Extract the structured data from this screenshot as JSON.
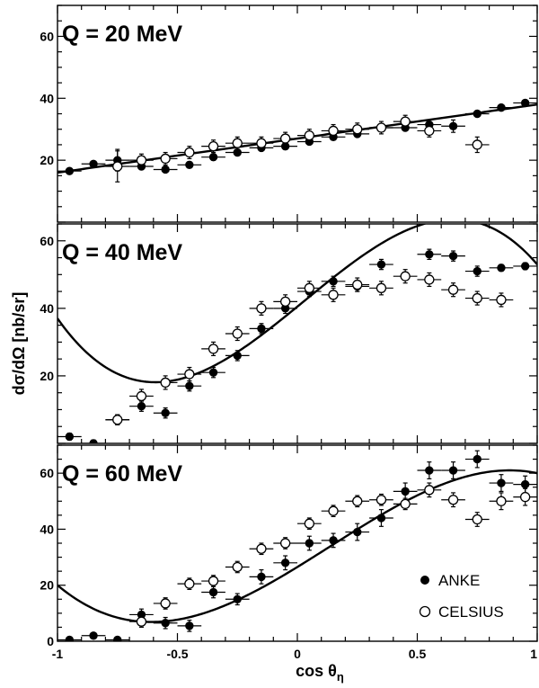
{
  "figure": {
    "y_axis_title": "dσ/dΩ [nb/sr]",
    "x_axis_title": "cos θ",
    "x_axis_title_subscript": "η"
  },
  "legend": {
    "anke_label": "ANKE",
    "celsius_label": "CELSIUS"
  },
  "chart_data": [
    {
      "type": "scatter",
      "title": "Q = 20 MeV",
      "xlabel": "cos θη",
      "ylabel": "dσ/dΩ [nb/sr]",
      "xlim": [
        -1,
        1
      ],
      "ylim": [
        0,
        70
      ],
      "x_ticks": [],
      "y_ticks": [
        "20",
        "40",
        "60"
      ],
      "fit": {
        "a": 27.0,
        "b": 11.0,
        "c": 0.0,
        "d": 0.0
      },
      "series": [
        {
          "name": "ANKE",
          "marker": "filled",
          "points": [
            {
              "x": -0.95,
              "y": 16.5,
              "xerr": 0.05,
              "yerr": 0.8
            },
            {
              "x": -0.85,
              "y": 18.8,
              "xerr": 0.05,
              "yerr": 0.8
            },
            {
              "x": -0.75,
              "y": 20.0,
              "xerr": 0.05,
              "yerr": 3.5
            },
            {
              "x": -0.65,
              "y": 18.0,
              "xerr": 0.05,
              "yerr": 1.0
            },
            {
              "x": -0.55,
              "y": 17.0,
              "xerr": 0.05,
              "yerr": 1.0
            },
            {
              "x": -0.45,
              "y": 18.5,
              "xerr": 0.05,
              "yerr": 1.0
            },
            {
              "x": -0.35,
              "y": 21.0,
              "xerr": 0.05,
              "yerr": 1.0
            },
            {
              "x": -0.25,
              "y": 22.5,
              "xerr": 0.05,
              "yerr": 1.0
            },
            {
              "x": -0.15,
              "y": 24.0,
              "xerr": 0.05,
              "yerr": 1.0
            },
            {
              "x": -0.05,
              "y": 24.5,
              "xerr": 0.05,
              "yerr": 1.0
            },
            {
              "x": 0.05,
              "y": 26.0,
              "xerr": 0.05,
              "yerr": 1.0
            },
            {
              "x": 0.15,
              "y": 27.5,
              "xerr": 0.05,
              "yerr": 1.0
            },
            {
              "x": 0.25,
              "y": 28.5,
              "xerr": 0.05,
              "yerr": 1.0
            },
            {
              "x": 0.35,
              "y": 30.5,
              "xerr": 0.05,
              "yerr": 1.0
            },
            {
              "x": 0.45,
              "y": 30.5,
              "xerr": 0.05,
              "yerr": 1.0
            },
            {
              "x": 0.55,
              "y": 31.5,
              "xerr": 0.05,
              "yerr": 1.0
            },
            {
              "x": 0.65,
              "y": 31.0,
              "xerr": 0.05,
              "yerr": 2.0
            },
            {
              "x": 0.75,
              "y": 35.0,
              "xerr": 0.05,
              "yerr": 0.8
            },
            {
              "x": 0.85,
              "y": 37.0,
              "xerr": 0.05,
              "yerr": 0.8
            },
            {
              "x": 0.95,
              "y": 38.5,
              "xerr": 0.05,
              "yerr": 0.8
            }
          ]
        },
        {
          "name": "CELSIUS",
          "marker": "open",
          "points": [
            {
              "x": -0.75,
              "y": 18.0,
              "xerr": 0.05,
              "yerr": 5.0
            },
            {
              "x": -0.65,
              "y": 20.0,
              "xerr": 0.05,
              "yerr": 2.0
            },
            {
              "x": -0.55,
              "y": 20.5,
              "xerr": 0.05,
              "yerr": 2.0
            },
            {
              "x": -0.45,
              "y": 22.5,
              "xerr": 0.05,
              "yerr": 2.0
            },
            {
              "x": -0.35,
              "y": 24.5,
              "xerr": 0.05,
              "yerr": 2.0
            },
            {
              "x": -0.25,
              "y": 25.5,
              "xerr": 0.05,
              "yerr": 2.0
            },
            {
              "x": -0.15,
              "y": 25.5,
              "xerr": 0.05,
              "yerr": 2.0
            },
            {
              "x": -0.05,
              "y": 27.0,
              "xerr": 0.05,
              "yerr": 2.0
            },
            {
              "x": 0.05,
              "y": 28.0,
              "xerr": 0.05,
              "yerr": 2.0
            },
            {
              "x": 0.15,
              "y": 29.5,
              "xerr": 0.05,
              "yerr": 2.0
            },
            {
              "x": 0.25,
              "y": 30.0,
              "xerr": 0.05,
              "yerr": 2.0
            },
            {
              "x": 0.35,
              "y": 30.5,
              "xerr": 0.05,
              "yerr": 2.0
            },
            {
              "x": 0.45,
              "y": 32.5,
              "xerr": 0.05,
              "yerr": 2.0
            },
            {
              "x": 0.55,
              "y": 29.5,
              "xerr": 0.05,
              "yerr": 2.0
            },
            {
              "x": 0.75,
              "y": 25.0,
              "xerr": 0.05,
              "yerr": 2.5
            }
          ]
        }
      ]
    },
    {
      "type": "scatter",
      "title": "Q = 40 MeV",
      "xlabel": "cos θη",
      "ylabel": "dσ/dΩ [nb/sr]",
      "xlim": [
        -1,
        1
      ],
      "ylim": [
        0,
        65
      ],
      "x_ticks": [],
      "y_ticks": [
        "20",
        "40",
        "60"
      ],
      "fit": {
        "a": 42.0,
        "b": 28.0,
        "c": 3.0,
        "d": -20.0
      },
      "series": [
        {
          "name": "ANKE",
          "marker": "filled",
          "points": [
            {
              "x": -0.95,
              "y": 2.0,
              "xerr": 0.05,
              "yerr": 1.0
            },
            {
              "x": -0.85,
              "y": 0.0,
              "xerr": 0.05,
              "yerr": 1.0
            },
            {
              "x": -0.75,
              "y": 7.0,
              "xerr": 0.05,
              "yerr": 1.5
            },
            {
              "x": -0.65,
              "y": 11.0,
              "xerr": 0.05,
              "yerr": 1.5
            },
            {
              "x": -0.55,
              "y": 9.0,
              "xerr": 0.05,
              "yerr": 1.5
            },
            {
              "x": -0.45,
              "y": 17.0,
              "xerr": 0.05,
              "yerr": 1.5
            },
            {
              "x": -0.35,
              "y": 21.0,
              "xerr": 0.05,
              "yerr": 1.5
            },
            {
              "x": -0.25,
              "y": 26.0,
              "xerr": 0.05,
              "yerr": 1.5
            },
            {
              "x": -0.15,
              "y": 34.0,
              "xerr": 0.05,
              "yerr": 1.5
            },
            {
              "x": -0.05,
              "y": 40.0,
              "xerr": 0.05,
              "yerr": 1.5
            },
            {
              "x": 0.05,
              "y": 45.0,
              "xerr": 0.05,
              "yerr": 1.5
            },
            {
              "x": 0.15,
              "y": 48.0,
              "xerr": 0.05,
              "yerr": 1.5
            },
            {
              "x": 0.25,
              "y": 46.5,
              "xerr": 0.05,
              "yerr": 1.5
            },
            {
              "x": 0.35,
              "y": 53.0,
              "xerr": 0.05,
              "yerr": 1.5
            },
            {
              "x": 0.55,
              "y": 56.0,
              "xerr": 0.05,
              "yerr": 1.5
            },
            {
              "x": 0.65,
              "y": 55.5,
              "xerr": 0.05,
              "yerr": 1.5
            },
            {
              "x": 0.75,
              "y": 51.0,
              "xerr": 0.05,
              "yerr": 1.5
            },
            {
              "x": 0.85,
              "y": 52.0,
              "xerr": 0.05,
              "yerr": 1.0
            },
            {
              "x": 0.95,
              "y": 52.5,
              "xerr": 0.05,
              "yerr": 1.0
            }
          ]
        },
        {
          "name": "CELSIUS",
          "marker": "open",
          "points": [
            {
              "x": -0.75,
              "y": 7.0,
              "xerr": 0.05,
              "yerr": 1.5
            },
            {
              "x": -0.65,
              "y": 14.0,
              "xerr": 0.05,
              "yerr": 2.0
            },
            {
              "x": -0.55,
              "y": 18.0,
              "xerr": 0.05,
              "yerr": 2.0
            },
            {
              "x": -0.45,
              "y": 20.5,
              "xerr": 0.05,
              "yerr": 2.0
            },
            {
              "x": -0.35,
              "y": 28.0,
              "xerr": 0.05,
              "yerr": 2.0
            },
            {
              "x": -0.25,
              "y": 32.5,
              "xerr": 0.05,
              "yerr": 2.0
            },
            {
              "x": -0.15,
              "y": 40.0,
              "xerr": 0.05,
              "yerr": 2.0
            },
            {
              "x": -0.05,
              "y": 42.0,
              "xerr": 0.05,
              "yerr": 2.0
            },
            {
              "x": 0.05,
              "y": 46.0,
              "xerr": 0.05,
              "yerr": 2.0
            },
            {
              "x": 0.15,
              "y": 44.0,
              "xerr": 0.05,
              "yerr": 2.0
            },
            {
              "x": 0.25,
              "y": 47.0,
              "xerr": 0.05,
              "yerr": 2.0
            },
            {
              "x": 0.35,
              "y": 46.0,
              "xerr": 0.05,
              "yerr": 2.0
            },
            {
              "x": 0.45,
              "y": 49.5,
              "xerr": 0.05,
              "yerr": 2.0
            },
            {
              "x": 0.55,
              "y": 48.5,
              "xerr": 0.05,
              "yerr": 2.0
            },
            {
              "x": 0.65,
              "y": 45.5,
              "xerr": 0.05,
              "yerr": 2.0
            },
            {
              "x": 0.75,
              "y": 43.0,
              "xerr": 0.05,
              "yerr": 2.0
            },
            {
              "x": 0.85,
              "y": 42.5,
              "xerr": 0.05,
              "yerr": 2.0
            }
          ]
        }
      ]
    },
    {
      "type": "scatter",
      "title": "Q = 60 MeV",
      "xlabel": "cos θη",
      "ylabel": "dσ/dΩ [nb/sr]",
      "xlim": [
        -1,
        1
      ],
      "ylim": [
        0,
        70
      ],
      "x_ticks": [
        "-1",
        "-0.5",
        "0",
        "0.5",
        "1"
      ],
      "y_ticks": [
        "0",
        "20",
        "40",
        "60"
      ],
      "fit": {
        "a": 31.0,
        "b": 33.0,
        "c": 9.0,
        "d": -13.0
      },
      "series": [
        {
          "name": "ANKE",
          "marker": "filled",
          "points": [
            {
              "x": -0.95,
              "y": 0.5,
              "xerr": 0.05,
              "yerr": 0.8
            },
            {
              "x": -0.85,
              "y": 2.0,
              "xerr": 0.05,
              "yerr": 0.8
            },
            {
              "x": -0.75,
              "y": 0.5,
              "xerr": 0.05,
              "yerr": 0.8
            },
            {
              "x": -0.65,
              "y": 9.5,
              "xerr": 0.05,
              "yerr": 2.0
            },
            {
              "x": -0.55,
              "y": 6.5,
              "xerr": 0.05,
              "yerr": 2.0
            },
            {
              "x": -0.45,
              "y": 5.5,
              "xerr": 0.05,
              "yerr": 2.0
            },
            {
              "x": -0.35,
              "y": 17.5,
              "xerr": 0.05,
              "yerr": 2.0
            },
            {
              "x": -0.25,
              "y": 15.0,
              "xerr": 0.05,
              "yerr": 2.0
            },
            {
              "x": -0.15,
              "y": 23.0,
              "xerr": 0.05,
              "yerr": 2.5
            },
            {
              "x": -0.05,
              "y": 28.0,
              "xerr": 0.05,
              "yerr": 2.5
            },
            {
              "x": 0.05,
              "y": 35.0,
              "xerr": 0.05,
              "yerr": 2.5
            },
            {
              "x": 0.15,
              "y": 36.0,
              "xerr": 0.05,
              "yerr": 2.5
            },
            {
              "x": 0.25,
              "y": 39.0,
              "xerr": 0.05,
              "yerr": 3.0
            },
            {
              "x": 0.35,
              "y": 44.0,
              "xerr": 0.05,
              "yerr": 3.0
            },
            {
              "x": 0.45,
              "y": 53.5,
              "xerr": 0.05,
              "yerr": 3.0
            },
            {
              "x": 0.55,
              "y": 61.0,
              "xerr": 0.05,
              "yerr": 3.0
            },
            {
              "x": 0.65,
              "y": 61.0,
              "xerr": 0.05,
              "yerr": 3.0
            },
            {
              "x": 0.75,
              "y": 65.0,
              "xerr": 0.05,
              "yerr": 3.0
            },
            {
              "x": 0.85,
              "y": 56.5,
              "xerr": 0.05,
              "yerr": 3.0
            },
            {
              "x": 0.95,
              "y": 56.0,
              "xerr": 0.05,
              "yerr": 3.0
            }
          ]
        },
        {
          "name": "CELSIUS",
          "marker": "open",
          "points": [
            {
              "x": -0.65,
              "y": 7.0,
              "xerr": 0.05,
              "yerr": 2.0
            },
            {
              "x": -0.55,
              "y": 13.5,
              "xerr": 0.05,
              "yerr": 2.0
            },
            {
              "x": -0.45,
              "y": 20.5,
              "xerr": 0.05,
              "yerr": 2.0
            },
            {
              "x": -0.35,
              "y": 21.5,
              "xerr": 0.05,
              "yerr": 2.0
            },
            {
              "x": -0.25,
              "y": 26.5,
              "xerr": 0.05,
              "yerr": 2.0
            },
            {
              "x": -0.15,
              "y": 33.0,
              "xerr": 0.05,
              "yerr": 2.0
            },
            {
              "x": -0.05,
              "y": 35.0,
              "xerr": 0.05,
              "yerr": 2.0
            },
            {
              "x": 0.05,
              "y": 42.0,
              "xerr": 0.05,
              "yerr": 2.0
            },
            {
              "x": 0.15,
              "y": 46.5,
              "xerr": 0.05,
              "yerr": 2.0
            },
            {
              "x": 0.25,
              "y": 50.0,
              "xerr": 0.05,
              "yerr": 2.0
            },
            {
              "x": 0.35,
              "y": 50.5,
              "xerr": 0.05,
              "yerr": 2.0
            },
            {
              "x": 0.45,
              "y": 49.0,
              "xerr": 0.05,
              "yerr": 2.0
            },
            {
              "x": 0.55,
              "y": 54.0,
              "xerr": 0.05,
              "yerr": 2.5
            },
            {
              "x": 0.65,
              "y": 50.5,
              "xerr": 0.05,
              "yerr": 2.5
            },
            {
              "x": 0.75,
              "y": 43.5,
              "xerr": 0.05,
              "yerr": 2.5
            },
            {
              "x": 0.85,
              "y": 50.0,
              "xerr": 0.05,
              "yerr": 3.0
            },
            {
              "x": 0.95,
              "y": 51.5,
              "xerr": 0.05,
              "yerr": 3.0
            }
          ]
        }
      ]
    }
  ]
}
